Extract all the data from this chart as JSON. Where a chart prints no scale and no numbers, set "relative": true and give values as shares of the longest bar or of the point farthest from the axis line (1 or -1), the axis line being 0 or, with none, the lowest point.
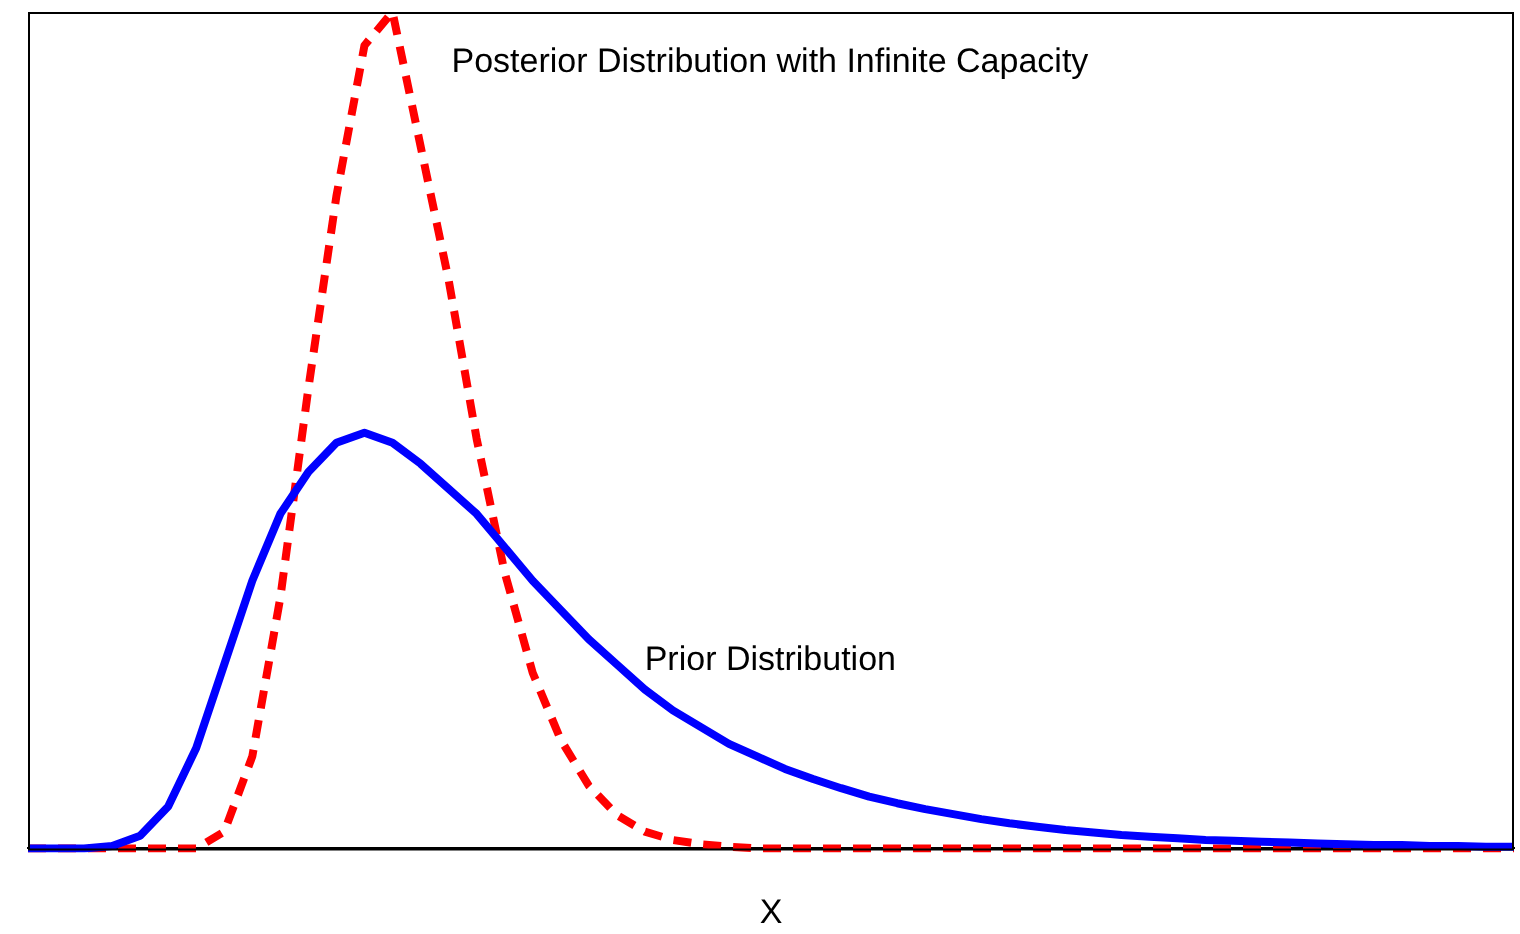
{
  "chart_data": {
    "type": "line",
    "relative": true,
    "xlabel": "X",
    "grid": false,
    "legend": false,
    "marker": "none",
    "categories": [
      null,
      null,
      null,
      null,
      null,
      null,
      null,
      null,
      null,
      null,
      null,
      null,
      null,
      null,
      null,
      null,
      null,
      null,
      null,
      null,
      null,
      null,
      null,
      null,
      null,
      null,
      null,
      null,
      null,
      null,
      null,
      null,
      null,
      null,
      null,
      null,
      null,
      null,
      null,
      null,
      null,
      null,
      null,
      null,
      null,
      null,
      null,
      null,
      null,
      null,
      null,
      null,
      null,
      null
    ],
    "series": [
      {
        "name": "Prior Distribution",
        "color": "#0000ff",
        "line_style": "solid",
        "values": [
          0,
          0,
          0,
          0.003,
          0.015,
          0.05,
          0.12,
          0.22,
          0.32,
          0.4,
          0.45,
          0.485,
          0.497,
          0.485,
          0.46,
          0.43,
          0.4,
          0.36,
          0.32,
          0.285,
          0.25,
          0.22,
          0.19,
          0.165,
          0.145,
          0.125,
          0.11,
          0.095,
          0.083,
          0.072,
          0.062,
          0.054,
          0.047,
          0.041,
          0.035,
          0.03,
          0.026,
          0.022,
          0.019,
          0.016,
          0.014,
          0.012,
          0.01,
          0.009,
          0.008,
          0.007,
          0.006,
          0.005,
          0.004,
          0.004,
          0.003,
          0.003,
          0.002,
          0.002
        ]
      },
      {
        "name": "Posterior Distribution with Infinite Capacity",
        "color": "#ff0000",
        "line_style": "dashed",
        "values": [
          0,
          0,
          0,
          0,
          0,
          0,
          0,
          0.02,
          0.11,
          0.3,
          0.55,
          0.78,
          0.96,
          1,
          0.84,
          0.68,
          0.49,
          0.33,
          0.21,
          0.13,
          0.075,
          0.04,
          0.02,
          0.01,
          0.005,
          0.002,
          0,
          0,
          0,
          0,
          0,
          0,
          0,
          0,
          0,
          0,
          0,
          0,
          0,
          0,
          0,
          0,
          0,
          0,
          0,
          0,
          0,
          0,
          0,
          0,
          0,
          0,
          0,
          0
        ]
      }
    ]
  }
}
